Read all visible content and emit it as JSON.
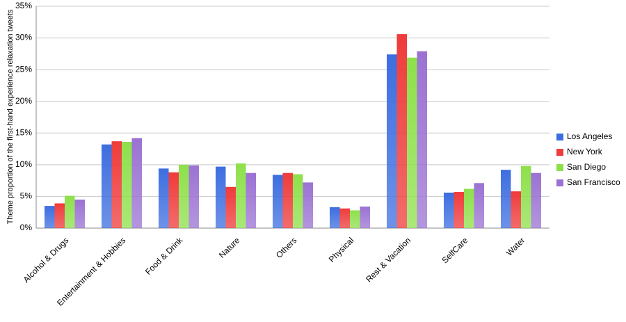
{
  "chart_data": {
    "type": "bar",
    "y_label": "Theme proportion of the first-hand experience relaxation tweets",
    "categories": [
      "Alcohol & Drugs",
      "Entertainment & Hobbies",
      "Food & Drink",
      "Nature",
      "Others",
      "Physical",
      "Rest & Vacation",
      "SelfCare",
      "Water"
    ],
    "series": [
      {
        "name": "Los Angeles",
        "color": "#3d6ee0",
        "values": [
          3.5,
          13.2,
          9.4,
          9.7,
          8.4,
          3.3,
          27.4,
          5.6,
          9.2
        ]
      },
      {
        "name": "New York",
        "color": "#ef3b3b",
        "values": [
          3.9,
          13.7,
          8.8,
          6.5,
          8.7,
          3.1,
          30.6,
          5.7,
          5.8
        ]
      },
      {
        "name": "San Diego",
        "color": "#8ee04b",
        "values": [
          5.1,
          13.6,
          10.0,
          10.2,
          8.5,
          2.8,
          26.9,
          6.2,
          9.8
        ]
      },
      {
        "name": "San Francisco",
        "color": "#9b72d3",
        "values": [
          4.5,
          14.2,
          9.9,
          8.7,
          7.2,
          3.4,
          27.9,
          7.1,
          8.7
        ]
      }
    ],
    "ylim": [
      0,
      35
    ],
    "yticks": [
      {
        "value": 0,
        "label": "0%"
      },
      {
        "value": 5,
        "label": "5%"
      },
      {
        "value": 10,
        "label": "10%"
      },
      {
        "value": 15,
        "label": "15%"
      },
      {
        "value": 20,
        "label": "20%"
      },
      {
        "value": 25,
        "label": "25%"
      },
      {
        "value": 30,
        "label": "30%"
      },
      {
        "value": 35,
        "label": "35%"
      }
    ],
    "grid": true,
    "legend": "right"
  }
}
